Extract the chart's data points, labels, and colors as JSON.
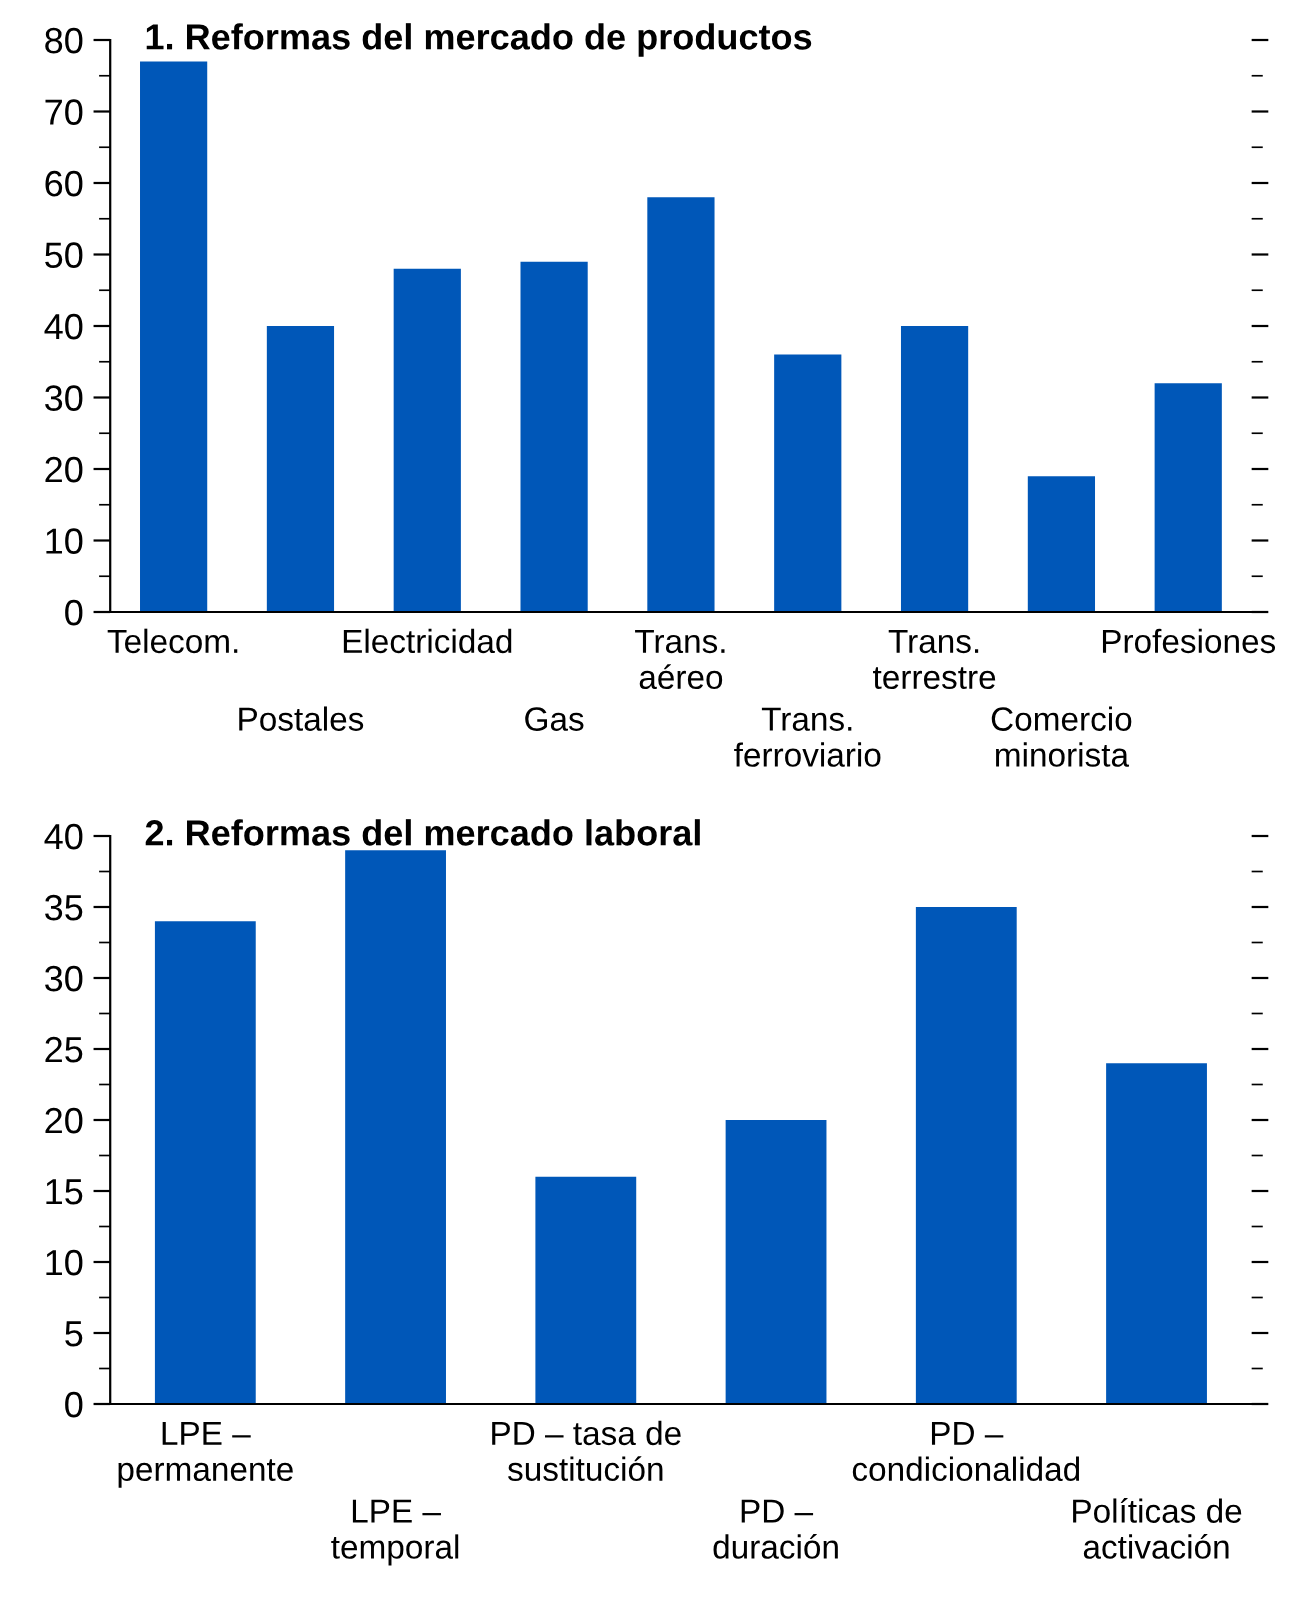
{
  "chart_data": [
    {
      "type": "bar",
      "title": "1. Reformas del mercado de productos",
      "categories": [
        "Telecom.",
        "Postales",
        "Electricidad",
        "Gas",
        "Trans.\naéreo",
        "Trans.\nferroviario",
        "Trans.\nterrestre",
        "Comercio\nminorista",
        "Profesiones"
      ],
      "values": [
        77,
        40,
        48,
        49,
        58,
        36,
        40,
        19,
        32
      ],
      "color": "#0057b8",
      "ylim": [
        0,
        80
      ],
      "yticks": [
        0,
        10,
        20,
        30,
        40,
        50,
        60,
        70,
        80
      ],
      "grid": false,
      "legend": false
    },
    {
      "type": "bar",
      "title": "2. Reformas del mercado laboral",
      "categories": [
        "LPE –\npermanente",
        "LPE –\ntemporal",
        "PD – tasa de\nsustitución",
        "PD –\nduración",
        "PD –\ncondicionalidad",
        "Políticas de\nactivación"
      ],
      "values": [
        34,
        39,
        16,
        20,
        35,
        24
      ],
      "color": "#0057b8",
      "ylim": [
        0,
        40
      ],
      "yticks": [
        0,
        5,
        10,
        15,
        20,
        25,
        30,
        35,
        40
      ],
      "grid": false,
      "legend": false
    }
  ]
}
